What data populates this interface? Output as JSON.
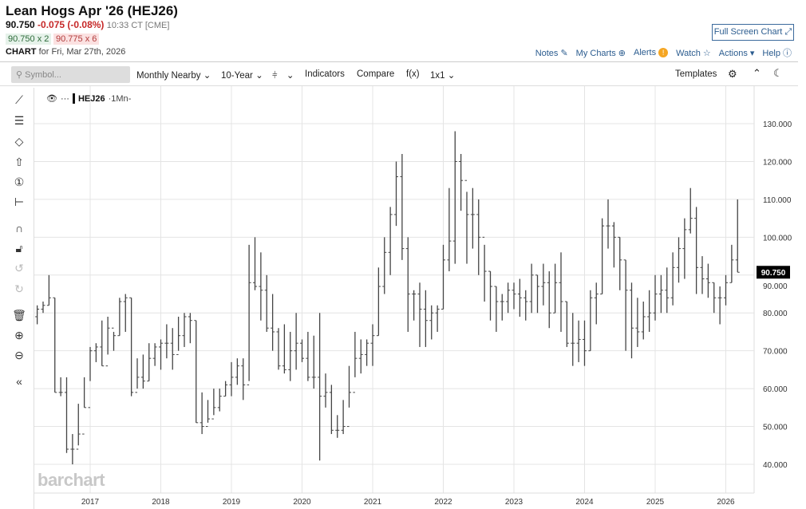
{
  "header": {
    "title": "Lean Hogs Apr '26 (HEJ26)",
    "last": "90.750",
    "change": "-0.075 (-0.08%)",
    "time": "10:33 CT [CME]",
    "bid": "90.750 x 2",
    "ask": "90.775 x 6",
    "chart_label": "CHART",
    "chart_for": "for Fri, Mar 27th, 2026",
    "full_screen": "Full Screen Chart",
    "links": {
      "notes": "Notes",
      "my_charts": "My Charts",
      "alerts": "Alerts",
      "alerts_badge": "!",
      "watch": "Watch",
      "actions": "Actions",
      "help": "Help"
    }
  },
  "toolbar": {
    "symbol_placeholder": "Symbol...",
    "period": "Monthly Nearby",
    "range": "10-Year",
    "indicators": "Indicators",
    "compare": "Compare",
    "fx": "f(x)",
    "layout": "1x1",
    "templates": "Templates"
  },
  "legend": {
    "symbol": "HEJ26",
    "interval": "1Mn"
  },
  "watermark": "barchart",
  "price_label": "90.750",
  "colors": {
    "bars": "#444444",
    "price_label_bg": "#000000",
    "change": "#c62828",
    "link": "#2b5c8f"
  },
  "chart_data": {
    "type": "ohlc",
    "interval": "monthly",
    "ylim": [
      35,
      140
    ],
    "yticks": [
      "40.000",
      "50.000",
      "60.000",
      "70.000",
      "80.000",
      "90.000",
      "100.000",
      "110.000",
      "120.000",
      "130.000"
    ],
    "xticks": [
      "2017",
      "2018",
      "2019",
      "2020",
      "2021",
      "2022",
      "2023",
      "2024",
      "2025",
      "2026"
    ],
    "grid": true,
    "bars": [
      [
        "2016-04",
        79,
        82,
        77,
        81
      ],
      [
        "2016-05",
        81,
        83,
        80,
        82
      ],
      [
        "2016-06",
        82,
        90,
        82,
        84
      ],
      [
        "2016-07",
        84,
        84,
        59,
        59
      ],
      [
        "2016-08",
        59,
        63,
        58,
        59
      ],
      [
        "2016-09",
        59,
        63,
        43,
        44
      ],
      [
        "2016-10",
        44,
        48,
        40,
        44
      ],
      [
        "2016-11",
        44,
        56,
        45,
        48
      ],
      [
        "2016-12",
        48,
        63,
        55,
        55
      ],
      [
        "2017-01",
        55,
        71,
        62,
        70
      ],
      [
        "2017-02",
        70,
        72,
        67,
        71
      ],
      [
        "2017-03",
        71,
        78,
        66,
        66
      ],
      [
        "2017-04",
        66,
        79,
        69,
        76
      ],
      [
        "2017-05",
        76,
        75,
        70,
        74
      ],
      [
        "2017-06",
        74,
        84,
        74,
        83
      ],
      [
        "2017-07",
        83,
        85,
        75,
        84
      ],
      [
        "2017-08",
        84,
        84,
        58,
        59
      ],
      [
        "2017-09",
        59,
        68,
        60,
        63
      ],
      [
        "2017-10",
        63,
        69,
        60,
        62
      ],
      [
        "2017-11",
        62,
        72,
        62,
        68
      ],
      [
        "2017-12",
        68,
        72,
        66,
        71
      ],
      [
        "2018-01",
        71,
        73,
        65,
        72
      ],
      [
        "2018-02",
        72,
        77,
        68,
        72
      ],
      [
        "2018-03",
        72,
        76,
        65,
        69
      ],
      [
        "2018-04",
        69,
        79,
        70,
        74
      ],
      [
        "2018-05",
        74,
        80,
        71,
        79
      ],
      [
        "2018-06",
        79,
        80,
        72,
        78
      ],
      [
        "2018-07",
        78,
        78,
        51,
        51
      ],
      [
        "2018-08",
        51,
        59,
        48,
        50
      ],
      [
        "2018-09",
        50,
        57,
        51,
        52
      ],
      [
        "2018-10",
        52,
        60,
        53,
        55
      ],
      [
        "2018-11",
        55,
        60,
        54,
        58
      ],
      [
        "2018-12",
        58,
        62,
        58,
        61
      ],
      [
        "2019-01",
        61,
        67,
        58,
        63
      ],
      [
        "2019-02",
        63,
        68,
        61,
        66
      ],
      [
        "2019-03",
        66,
        68,
        57,
        61
      ],
      [
        "2019-04",
        61,
        98,
        62,
        88
      ],
      [
        "2019-05",
        88,
        100,
        86,
        87
      ],
      [
        "2019-06",
        87,
        96,
        78,
        86
      ],
      [
        "2019-07",
        86,
        90,
        75,
        76
      ],
      [
        "2019-08",
        76,
        85,
        70,
        75
      ],
      [
        "2019-09",
        75,
        76,
        65,
        66
      ],
      [
        "2019-10",
        66,
        77,
        64,
        65
      ],
      [
        "2019-11",
        65,
        75,
        62,
        70
      ],
      [
        "2019-12",
        70,
        80,
        65,
        72
      ],
      [
        "2020-01",
        72,
        73,
        67,
        68
      ],
      [
        "2020-02",
        68,
        75,
        62,
        63
      ],
      [
        "2020-03",
        63,
        74,
        60,
        63
      ],
      [
        "2020-04",
        63,
        80,
        41,
        58
      ],
      [
        "2020-05",
        58,
        64,
        55,
        59
      ],
      [
        "2020-06",
        59,
        61,
        48,
        49
      ],
      [
        "2020-07",
        49,
        53,
        47,
        49
      ],
      [
        "2020-08",
        49,
        57,
        48,
        50
      ],
      [
        "2020-09",
        50,
        66,
        55,
        59
      ],
      [
        "2020-10",
        59,
        75,
        63,
        68
      ],
      [
        "2020-11",
        68,
        73,
        64,
        69
      ],
      [
        "2020-12",
        69,
        73,
        66,
        72
      ],
      [
        "2021-01",
        72,
        77,
        66,
        74
      ],
      [
        "2021-02",
        74,
        92,
        74,
        87
      ],
      [
        "2021-03",
        87,
        100,
        85,
        96
      ],
      [
        "2021-04",
        96,
        108,
        90,
        106
      ],
      [
        "2021-05",
        106,
        120,
        103,
        116
      ],
      [
        "2021-06",
        116,
        122,
        94,
        97
      ],
      [
        "2021-07",
        97,
        100,
        75,
        85
      ],
      [
        "2021-08",
        85,
        86,
        78,
        85
      ],
      [
        "2021-09",
        85,
        88,
        71,
        81
      ],
      [
        "2021-10",
        81,
        86,
        71,
        78
      ],
      [
        "2021-11",
        78,
        82,
        73,
        80
      ],
      [
        "2021-12",
        80,
        82,
        75,
        81
      ],
      [
        "2022-01",
        81,
        98,
        81,
        94
      ],
      [
        "2022-02",
        94,
        113,
        91,
        99
      ],
      [
        "2022-03",
        99,
        128,
        93,
        120
      ],
      [
        "2022-04",
        120,
        122,
        107,
        115
      ],
      [
        "2022-05",
        115,
        112,
        93,
        106
      ],
      [
        "2022-06",
        106,
        113,
        97,
        106
      ],
      [
        "2022-07",
        106,
        110,
        90,
        100
      ],
      [
        "2022-08",
        100,
        98,
        83,
        91
      ],
      [
        "2022-09",
        91,
        91,
        78,
        87
      ],
      [
        "2022-10",
        87,
        87,
        75,
        83
      ],
      [
        "2022-11",
        83,
        85,
        78,
        83
      ],
      [
        "2022-12",
        83,
        88,
        80,
        86
      ],
      [
        "2023-01",
        86,
        88,
        81,
        85
      ],
      [
        "2023-02",
        85,
        89,
        79,
        84
      ],
      [
        "2023-03",
        84,
        86,
        78,
        83
      ],
      [
        "2023-04",
        83,
        93,
        80,
        90
      ],
      [
        "2023-05",
        90,
        90,
        80,
        87
      ],
      [
        "2023-06",
        87,
        93,
        82,
        88
      ],
      [
        "2023-07",
        88,
        91,
        76,
        80
      ],
      [
        "2023-08",
        80,
        93,
        80,
        88
      ],
      [
        "2023-09",
        88,
        96,
        75,
        83
      ],
      [
        "2023-10",
        83,
        83,
        71,
        72
      ],
      [
        "2023-11",
        72,
        80,
        66,
        72
      ],
      [
        "2023-12",
        72,
        78,
        67,
        73
      ],
      [
        "2024-01",
        73,
        78,
        66,
        70
      ],
      [
        "2024-02",
        70,
        86,
        70,
        84
      ],
      [
        "2024-03",
        84,
        88,
        77,
        85
      ],
      [
        "2024-04",
        85,
        105,
        85,
        103
      ],
      [
        "2024-05",
        103,
        110,
        97,
        103
      ],
      [
        "2024-06",
        103,
        104,
        92,
        100
      ],
      [
        "2024-07",
        100,
        100,
        86,
        94
      ],
      [
        "2024-08",
        94,
        94,
        70,
        86
      ],
      [
        "2024-09",
        86,
        88,
        68,
        76
      ],
      [
        "2024-10",
        76,
        84,
        71,
        75
      ],
      [
        "2024-11",
        75,
        83,
        73,
        79
      ],
      [
        "2024-12",
        79,
        86,
        75,
        80
      ],
      [
        "2025-01",
        80,
        90,
        78,
        85
      ],
      [
        "2025-02",
        85,
        90,
        80,
        86
      ],
      [
        "2025-03",
        86,
        92,
        80,
        84
      ],
      [
        "2025-04",
        84,
        96,
        82,
        92
      ],
      [
        "2025-05",
        92,
        100,
        88,
        97
      ],
      [
        "2025-06",
        97,
        105,
        89,
        102
      ],
      [
        "2025-07",
        102,
        113,
        101,
        105
      ],
      [
        "2025-08",
        105,
        108,
        85,
        92
      ],
      [
        "2025-09",
        92,
        95,
        85,
        89
      ],
      [
        "2025-10",
        89,
        93,
        84,
        88
      ],
      [
        "2025-11",
        88,
        88,
        80,
        84
      ],
      [
        "2025-12",
        84,
        87,
        77,
        84
      ],
      [
        "2026-01",
        84,
        90,
        82,
        88
      ],
      [
        "2026-02",
        88,
        98,
        88,
        94
      ],
      [
        "2026-03",
        94,
        110,
        90.75,
        90.75
      ]
    ]
  }
}
